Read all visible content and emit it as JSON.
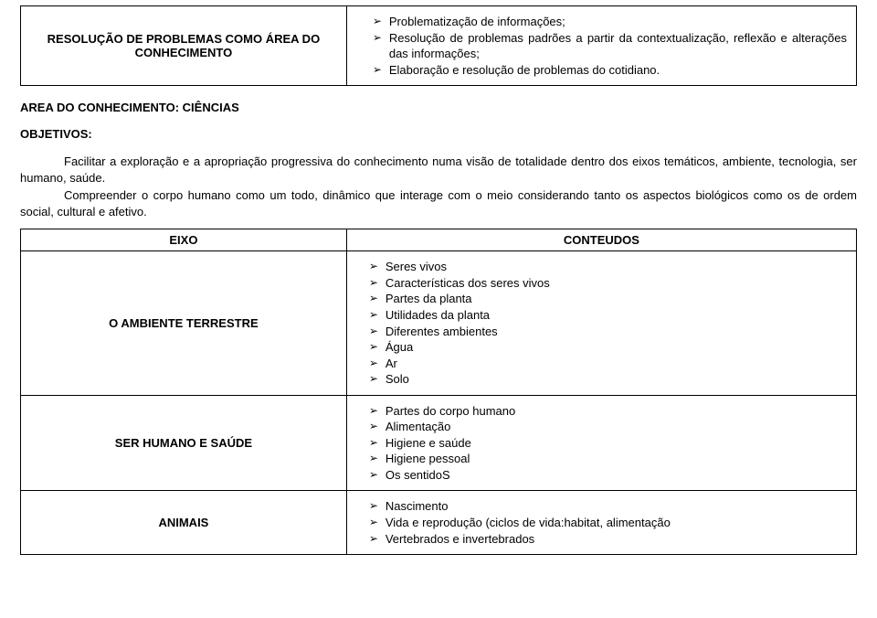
{
  "table1": {
    "left_line1": "RESOLUÇÃO DE PROBLEMAS COMO ÁREA DO",
    "left_line2": "CONHECIMENTO",
    "items": [
      "Problematização de informações;",
      "Resolução de problemas padrões a partir da contextualização, reflexão e alterações das informações;",
      "Elaboração e resolução de problemas do cotidiano."
    ]
  },
  "section_heading": "AREA DO CONHECIMENTO: CIÊNCIAS",
  "objectives_label": "OBJETIVOS:",
  "objective1": "Facilitar a exploração e a apropriação progressiva do conhecimento numa visão de totalidade dentro dos eixos temáticos, ambiente, tecnologia, ser humano, saúde.",
  "objective2": "Compreender o corpo humano como um todo, dinâmico que interage com o meio considerando tanto os aspectos biológicos como os de ordem social, cultural e afetivo.",
  "table2": {
    "header_left": "EIXO",
    "header_right": "CONTEUDOS",
    "rows": [
      {
        "left": "O AMBIENTE TERRESTRE",
        "items": [
          "Seres vivos",
          "Características dos seres vivos",
          "Partes da planta",
          "Utilidades da planta",
          "Diferentes ambientes",
          "Água",
          "Ar",
          "Solo"
        ]
      },
      {
        "left": "SER HUMANO E SAÚDE",
        "items": [
          "Partes do corpo humano",
          "Alimentação",
          "Higiene e saúde",
          "Higiene pessoal",
          "Os sentidoS"
        ]
      },
      {
        "left": "ANIMAIS",
        "items": [
          "Nascimento",
          "Vida e reprodução (ciclos de vida:habitat, alimentação",
          "Vertebrados e invertebrados"
        ]
      }
    ]
  }
}
